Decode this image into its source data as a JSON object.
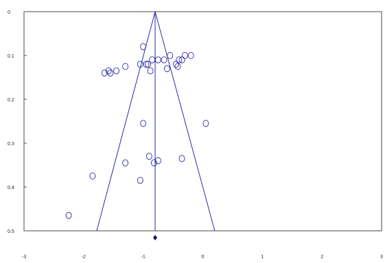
{
  "chart_data": {
    "type": "scatter",
    "subtype": "funnel-plot",
    "title": "",
    "xlabel": "",
    "ylabel": "",
    "xlim": [
      -3,
      3
    ],
    "ylim": [
      0,
      0.5
    ],
    "y_inverted": true,
    "x_ticks": [
      "-3",
      "-2",
      "-1",
      "0",
      "1",
      "2",
      "3"
    ],
    "y_ticks": [
      "0",
      "0.1",
      "0.2",
      "0.3",
      "0.4",
      "0.5"
    ],
    "grid": false,
    "summary_estimate": -0.8,
    "funnel": {
      "apex": [
        -0.8,
        0
      ],
      "base_left": [
        -1.78,
        0.5
      ],
      "base_right": [
        0.2,
        0.5
      ]
    },
    "points": [
      {
        "x": -1.0,
        "y": 0.08
      },
      {
        "x": -0.55,
        "y": 0.1
      },
      {
        "x": -0.65,
        "y": 0.11
      },
      {
        "x": -0.75,
        "y": 0.11
      },
      {
        "x": -0.85,
        "y": 0.11
      },
      {
        "x": -0.3,
        "y": 0.1
      },
      {
        "x": -0.2,
        "y": 0.1
      },
      {
        "x": -0.35,
        "y": 0.11
      },
      {
        "x": -0.4,
        "y": 0.11
      },
      {
        "x": -0.45,
        "y": 0.12
      },
      {
        "x": -0.95,
        "y": 0.12
      },
      {
        "x": -1.05,
        "y": 0.12
      },
      {
        "x": -0.92,
        "y": 0.12
      },
      {
        "x": -1.3,
        "y": 0.125
      },
      {
        "x": -0.42,
        "y": 0.125
      },
      {
        "x": -0.6,
        "y": 0.13
      },
      {
        "x": -0.88,
        "y": 0.135
      },
      {
        "x": -1.45,
        "y": 0.135
      },
      {
        "x": -1.58,
        "y": 0.135
      },
      {
        "x": -1.65,
        "y": 0.14
      },
      {
        "x": -1.55,
        "y": 0.14
      },
      {
        "x": -1.0,
        "y": 0.255
      },
      {
        "x": 0.05,
        "y": 0.255
      },
      {
        "x": -0.9,
        "y": 0.33
      },
      {
        "x": -0.35,
        "y": 0.335
      },
      {
        "x": -0.75,
        "y": 0.34
      },
      {
        "x": -0.82,
        "y": 0.345
      },
      {
        "x": -1.3,
        "y": 0.345
      },
      {
        "x": -1.85,
        "y": 0.375
      },
      {
        "x": -1.05,
        "y": 0.385
      },
      {
        "x": -2.25,
        "y": 0.465
      }
    ],
    "colors": {
      "points": "#2929a8",
      "funnel": "#2929a8",
      "axis": "#555555"
    }
  }
}
